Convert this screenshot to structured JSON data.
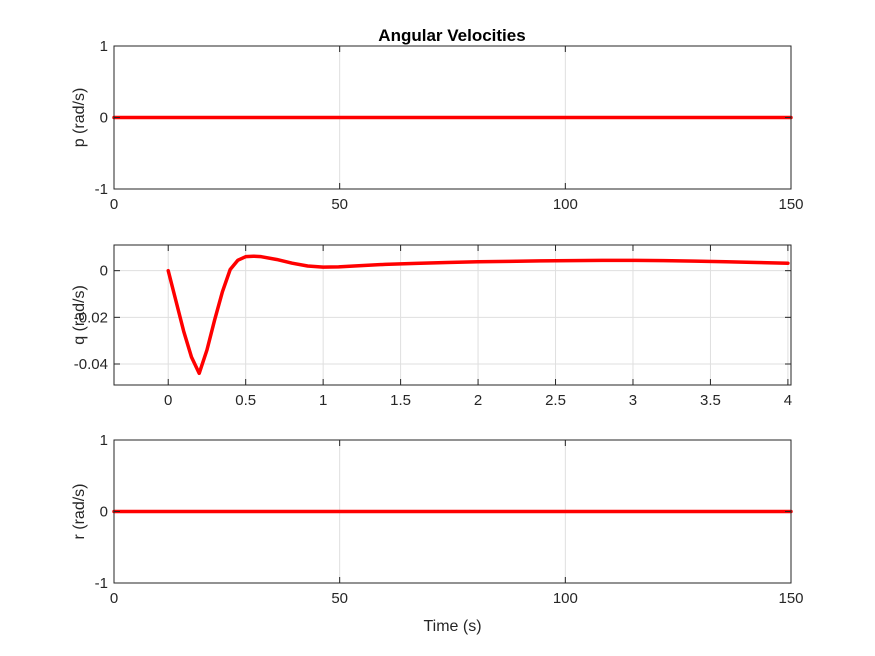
{
  "figure_title": "Angular Velocities",
  "colors": {
    "series": "#ff0000",
    "axis": "#262626",
    "grid": "#dfdfdf",
    "background": "#ffffff"
  },
  "chart_data": [
    {
      "type": "line",
      "title": "Angular Velocities",
      "xlabel": "",
      "ylabel": "p (rad/s)",
      "xlim": [
        0,
        150
      ],
      "ylim": [
        -1,
        1
      ],
      "xticks": [
        0,
        50,
        100,
        150
      ],
      "xtick_labels": [
        "0",
        "50",
        "100",
        "150"
      ],
      "yticks": [
        -1,
        0,
        1
      ],
      "ytick_labels": [
        "-1",
        "0",
        "1"
      ],
      "grid": true,
      "series": [
        {
          "x": [
            0,
            150
          ],
          "y": [
            0,
            0
          ]
        }
      ]
    },
    {
      "type": "line",
      "title": "",
      "xlabel": "",
      "ylabel": "q (rad/s)",
      "xlim": [
        -0.35,
        4.02
      ],
      "ylim": [
        -0.049,
        0.011
      ],
      "xticks": [
        0,
        0.5,
        1,
        1.5,
        2,
        2.5,
        3,
        3.5,
        4
      ],
      "xtick_labels": [
        "0",
        "0.5",
        "1",
        "1.5",
        "2",
        "2.5",
        "3",
        "3.5",
        "4"
      ],
      "yticks": [
        -0.04,
        -0.02,
        0
      ],
      "ytick_labels": [
        "-0.04",
        "-0.02",
        "0"
      ],
      "grid": true,
      "series": [
        {
          "x": [
            0,
            0.05,
            0.1,
            0.15,
            0.2,
            0.25,
            0.3,
            0.35,
            0.4,
            0.45,
            0.5,
            0.55,
            0.6,
            0.7,
            0.8,
            0.9,
            1.0,
            1.1,
            1.2,
            1.4,
            1.6,
            1.8,
            2.0,
            2.2,
            2.4,
            2.6,
            2.8,
            3.0,
            3.2,
            3.4,
            3.6,
            3.8,
            4.0
          ],
          "y": [
            0,
            -0.013,
            -0.026,
            -0.037,
            -0.044,
            -0.034,
            -0.021,
            -0.009,
            0.0005,
            0.0045,
            0.006,
            0.0062,
            0.006,
            0.0048,
            0.0032,
            0.002,
            0.0015,
            0.0016,
            0.002,
            0.0027,
            0.0031,
            0.0035,
            0.0038,
            0.004,
            0.0042,
            0.0043,
            0.0044,
            0.0044,
            0.0043,
            0.0041,
            0.0038,
            0.0035,
            0.0032
          ]
        }
      ]
    },
    {
      "type": "line",
      "title": "",
      "xlabel": "Time (s)",
      "ylabel": "r (rad/s)",
      "xlim": [
        0,
        150
      ],
      "ylim": [
        -1,
        1
      ],
      "xticks": [
        0,
        50,
        100,
        150
      ],
      "xtick_labels": [
        "0",
        "50",
        "100",
        "150"
      ],
      "yticks": [
        -1,
        0,
        1
      ],
      "ytick_labels": [
        "-1",
        "0",
        "1"
      ],
      "grid": true,
      "series": [
        {
          "x": [
            0,
            150
          ],
          "y": [
            0,
            0
          ]
        }
      ]
    }
  ]
}
